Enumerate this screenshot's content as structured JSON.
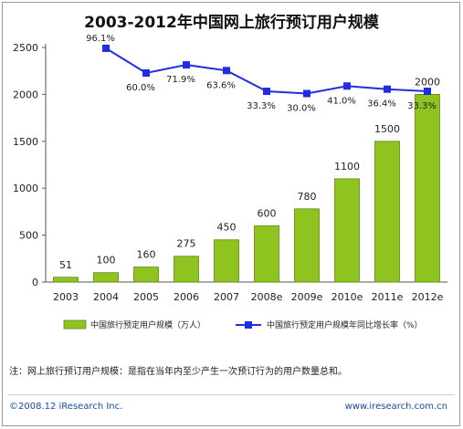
{
  "chart_data": {
    "type": "bar",
    "title": "2003-2012年中国网上旅行预订用户规模",
    "categories": [
      "2003",
      "2004",
      "2005",
      "2006",
      "2007",
      "2008e",
      "2009e",
      "2010e",
      "2011e",
      "2012e"
    ],
    "series": [
      {
        "name": "中国旅行预定用户规模（万人）",
        "type": "bar",
        "values": [
          51,
          100,
          160,
          275,
          450,
          600,
          780,
          1100,
          1500,
          2000
        ],
        "labels": [
          "51",
          "100",
          "160",
          "275",
          "450",
          "600",
          "780",
          "1100",
          "1500",
          "2000"
        ],
        "color": "#8fc31f"
      },
      {
        "name": "中国旅行预定用户规模年同比增长率（%）",
        "type": "line",
        "values": [
          null,
          96.1,
          60.0,
          71.9,
          63.6,
          33.3,
          30.0,
          41.0,
          36.4,
          33.3
        ],
        "labels": [
          "",
          "96.1%",
          "60.0%",
          "71.9%",
          "63.6%",
          "33.3%",
          "30.0%",
          "41.0%",
          "36.4%",
          "33.3%"
        ],
        "color": "#1f2fe0"
      }
    ],
    "yticks": [
      "0",
      "500",
      "1000",
      "1500",
      "2000",
      "2500"
    ],
    "ylim": [
      0,
      2500
    ],
    "grid": false,
    "legend": "bottom"
  },
  "note": "注：网上旅行预订用户规模：是指在当年内至少产生一次预订行为的用户数量总和。",
  "footer": {
    "left": "©2008.12 iResearch Inc.",
    "right": "www.iresearch.com.cn"
  }
}
